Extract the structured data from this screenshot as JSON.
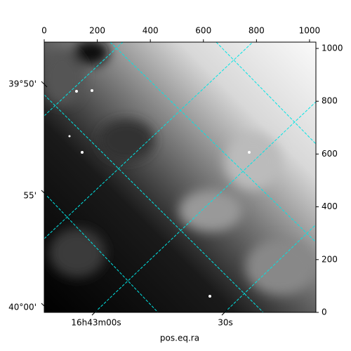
{
  "chart_data": {
    "type": "image",
    "xlim": [
      0,
      1024
    ],
    "ylim": [
      0,
      1024
    ],
    "xticks": [
      0,
      200,
      400,
      600,
      800,
      1000
    ],
    "yticks": [
      0,
      200,
      400,
      600,
      800,
      1000
    ],
    "x_label": "pos.eq.ra",
    "ra_labels": [
      "16h43m00s",
      "30s"
    ],
    "dec_labels": [
      "39°50'",
      "55'",
      "40°00'"
    ],
    "grid_color": "#00e5e5"
  }
}
